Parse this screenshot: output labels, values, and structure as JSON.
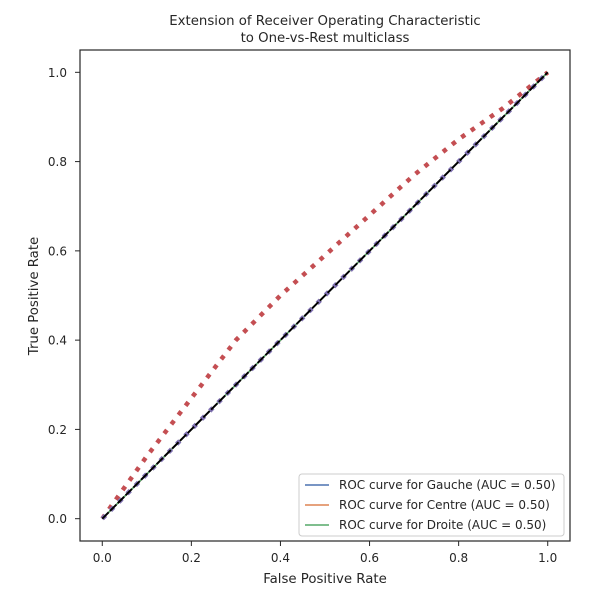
{
  "chart_data": {
    "type": "line",
    "title_lines": [
      "Extension of Receiver Operating Characteristic",
      "to One-vs-Rest multiclass"
    ],
    "xlabel": "False Positive Rate",
    "ylabel": "True Positive Rate",
    "xlim": [
      -0.05,
      1.05
    ],
    "ylim": [
      -0.05,
      1.05
    ],
    "x_ticks": [
      0.0,
      0.2,
      0.4,
      0.6,
      0.8,
      1.0
    ],
    "y_ticks": [
      0.0,
      0.2,
      0.4,
      0.6,
      0.8,
      1.0
    ],
    "x_tick_labels": [
      "0.0",
      "0.2",
      "0.4",
      "0.6",
      "0.8",
      "1.0"
    ],
    "y_tick_labels": [
      "0.0",
      "0.2",
      "0.4",
      "0.6",
      "0.8",
      "1.0"
    ],
    "grid": false,
    "legend_position": "lower-right",
    "series": [
      {
        "name": "ROC curve for Gauche (AUC = 0.50)",
        "color": "#4c72b0",
        "style": "solid",
        "x": [
          0.0,
          1.0
        ],
        "y": [
          0.0,
          1.0
        ]
      },
      {
        "name": "ROC curve for Centre (AUC = 0.50)",
        "color": "#dd8452",
        "style": "solid",
        "x": [
          0.0,
          1.0
        ],
        "y": [
          0.0,
          1.0
        ]
      },
      {
        "name": "ROC curve for Droite (AUC = 0.50)",
        "color": "#55a868",
        "style": "solid",
        "x": [
          0.0,
          1.0
        ],
        "y": [
          0.0,
          1.0
        ]
      }
    ],
    "unlabeled_lines": [
      {
        "color": "#c44e52",
        "style": "dotted",
        "x": [
          0.0,
          0.1,
          0.2,
          0.3,
          0.4,
          0.5,
          0.6,
          0.7,
          0.8,
          0.9,
          1.0
        ],
        "y": [
          0.0,
          0.14,
          0.27,
          0.4,
          0.5,
          0.59,
          0.68,
          0.77,
          0.85,
          0.92,
          1.0
        ]
      },
      {
        "color": "#8172b3",
        "style": "dotted",
        "x": [
          0.0,
          1.0
        ],
        "y": [
          0.0,
          1.0
        ]
      },
      {
        "color": "#000000",
        "style": "dashed",
        "x": [
          0.0,
          1.0
        ],
        "y": [
          0.0,
          1.0
        ]
      }
    ]
  }
}
